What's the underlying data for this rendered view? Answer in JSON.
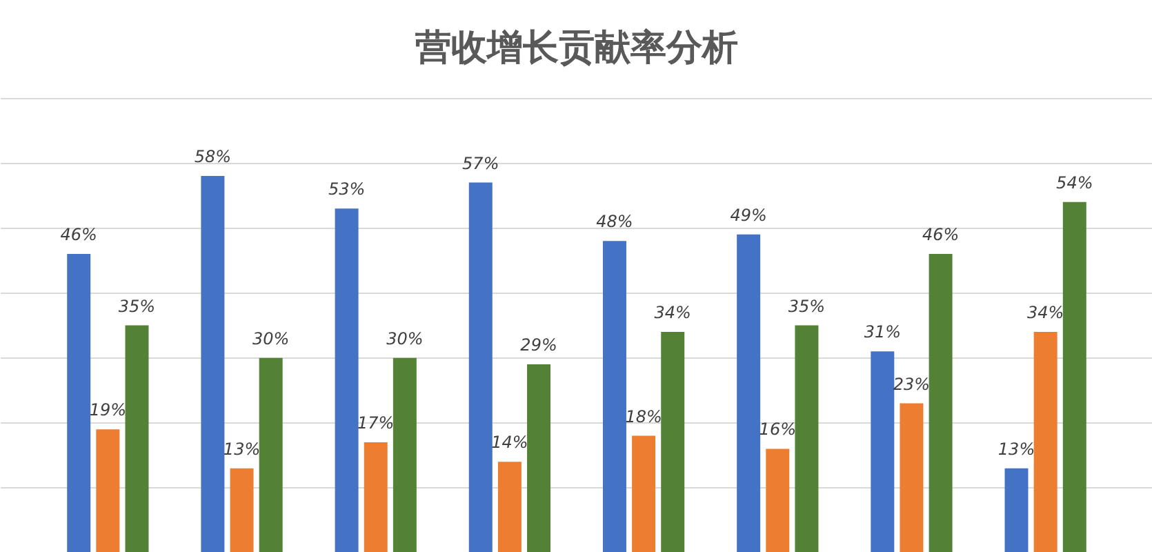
{
  "chart_data": {
    "type": "bar",
    "title": "营收增长贡献率分析",
    "categories": [
      null,
      null,
      null,
      null,
      null,
      null,
      null,
      null
    ],
    "series": [
      {
        "color": "#4472c4",
        "values": [
          46,
          58,
          53,
          57,
          48,
          49,
          31,
          13
        ],
        "value_labels": [
          "46%",
          "58%",
          "53%",
          "57%",
          "48%",
          "49%",
          "31%",
          "13%"
        ]
      },
      {
        "color": "#ed7d31",
        "values": [
          19,
          13,
          17,
          14,
          18,
          16,
          23,
          34
        ],
        "value_labels": [
          "19%",
          "13%",
          "17%",
          "14%",
          "18%",
          "16%",
          "23%",
          "34%"
        ]
      },
      {
        "color": "#538135",
        "values": [
          35,
          30,
          30,
          29,
          34,
          35,
          46,
          54
        ],
        "value_labels": [
          "35%",
          "30%",
          "30%",
          "29%",
          "34%",
          "35%",
          "46%",
          "54%"
        ]
      }
    ],
    "grid": "y",
    "tick_labels": false
  }
}
